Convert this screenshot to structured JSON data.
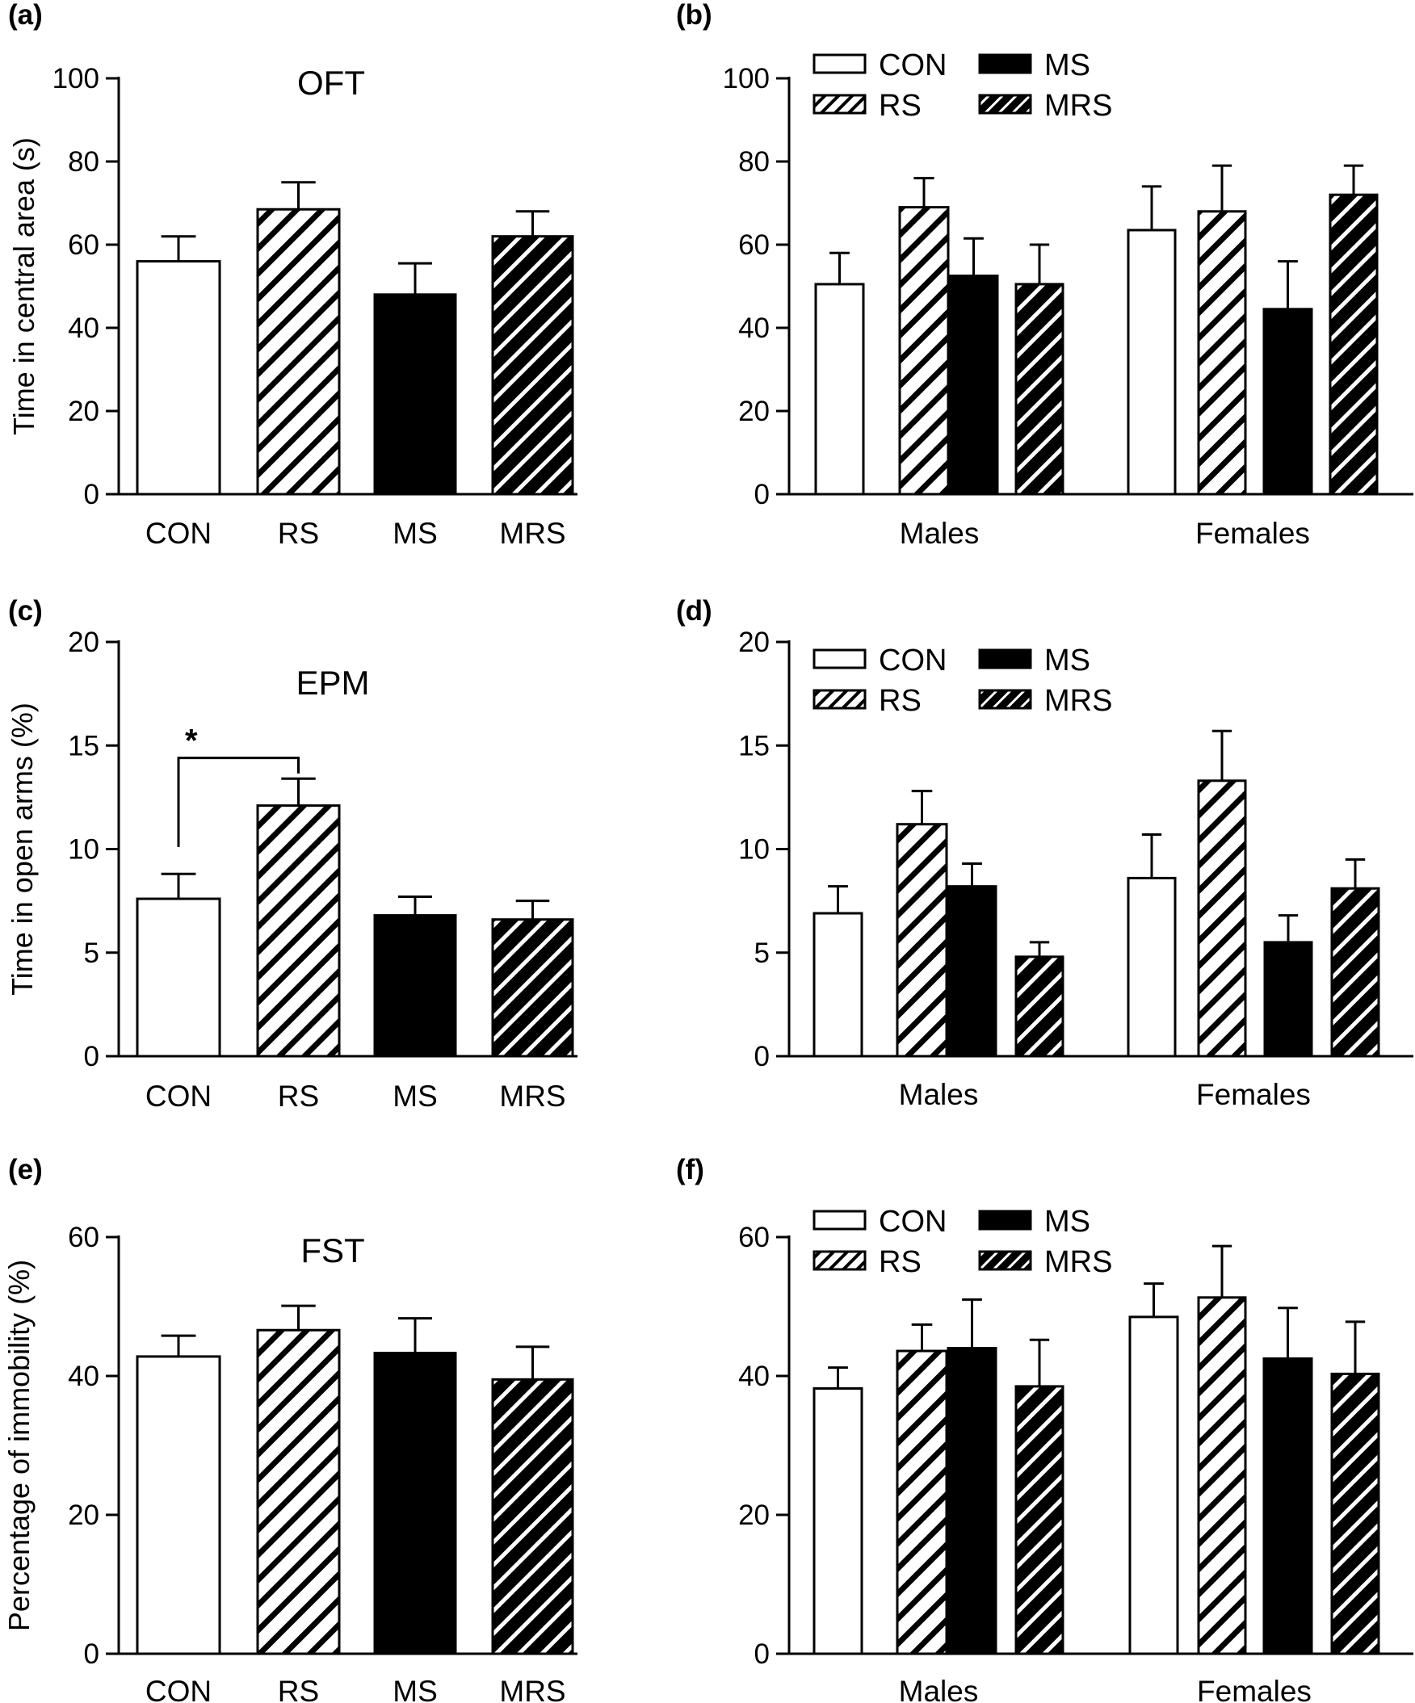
{
  "chart_data": [
    {
      "panel": "(a)",
      "type": "bar",
      "title": "OFT",
      "ylabel": "Time in central area (s)",
      "ylim": [
        0,
        100
      ],
      "yticks": [
        0,
        20,
        40,
        60,
        80,
        100
      ],
      "categories": [
        "CON",
        "RS",
        "MS",
        "MRS"
      ],
      "values": [
        56,
        68.5,
        48,
        62
      ],
      "errors": [
        6,
        6.5,
        7.5,
        6
      ],
      "fills": [
        "white",
        "hatch",
        "black",
        "hatch-dark"
      ],
      "grid": false
    },
    {
      "panel": "(b)",
      "type": "bar",
      "title": "",
      "ylabel": "",
      "ylim": [
        0,
        100
      ],
      "yticks": [
        0,
        20,
        40,
        60,
        80,
        100
      ],
      "groups": [
        "Males",
        "Females"
      ],
      "series": [
        {
          "name": "CON",
          "fill": "white",
          "values": [
            50.5,
            63.5
          ],
          "errors": [
            7.5,
            10.5
          ]
        },
        {
          "name": "RS",
          "fill": "hatch",
          "values": [
            69,
            68
          ],
          "errors": [
            7,
            11
          ]
        },
        {
          "name": "MS",
          "fill": "black",
          "values": [
            52.5,
            44.5
          ],
          "errors": [
            9,
            11.5
          ]
        },
        {
          "name": "MRS",
          "fill": "hatch-dark",
          "values": [
            50.5,
            72
          ],
          "errors": [
            9.5,
            7
          ]
        }
      ],
      "legend": "top-left",
      "grid": false
    },
    {
      "panel": "(c)",
      "type": "bar",
      "title": "EPM",
      "ylabel": "Time in open arms (%)",
      "ylim": [
        0,
        20
      ],
      "yticks": [
        0,
        5,
        10,
        15,
        20
      ],
      "categories": [
        "CON",
        "RS",
        "MS",
        "MRS"
      ],
      "values": [
        7.6,
        12.1,
        6.8,
        6.6
      ],
      "errors": [
        1.2,
        1.3,
        0.9,
        0.9
      ],
      "fills": [
        "white",
        "hatch",
        "black",
        "hatch-dark"
      ],
      "annotations": [
        {
          "text": "*",
          "from": "CON",
          "to": "RS"
        }
      ],
      "grid": false
    },
    {
      "panel": "(d)",
      "type": "bar",
      "title": "",
      "ylabel": "",
      "ylim": [
        0,
        20
      ],
      "yticks": [
        0,
        5,
        10,
        15,
        20
      ],
      "groups": [
        "Males",
        "Females"
      ],
      "series": [
        {
          "name": "CON",
          "fill": "white",
          "values": [
            6.9,
            8.6
          ],
          "errors": [
            1.3,
            2.1
          ]
        },
        {
          "name": "RS",
          "fill": "hatch",
          "values": [
            11.2,
            13.3
          ],
          "errors": [
            1.6,
            2.4
          ]
        },
        {
          "name": "MS",
          "fill": "black",
          "values": [
            8.2,
            5.5
          ],
          "errors": [
            1.1,
            1.3
          ]
        },
        {
          "name": "MRS",
          "fill": "hatch-dark",
          "values": [
            4.8,
            8.1
          ],
          "errors": [
            0.7,
            1.4
          ]
        }
      ],
      "legend": "top-left",
      "grid": false
    },
    {
      "panel": "(e)",
      "type": "bar",
      "title": "FST",
      "ylabel": "Percentage of immobility (%)",
      "ylim": [
        0,
        60
      ],
      "yticks": [
        0,
        20,
        40,
        60
      ],
      "categories": [
        "CON",
        "RS",
        "MS",
        "MRS"
      ],
      "values": [
        42.8,
        46.6,
        43.3,
        39.5
      ],
      "errors": [
        3,
        3.5,
        5,
        4.7
      ],
      "fills": [
        "white",
        "hatch",
        "black",
        "hatch-dark"
      ],
      "grid": false
    },
    {
      "panel": "(f)",
      "type": "bar",
      "title": "",
      "ylabel": "",
      "ylim": [
        0,
        60
      ],
      "yticks": [
        0,
        20,
        40,
        60
      ],
      "groups": [
        "Males",
        "Females"
      ],
      "series": [
        {
          "name": "CON",
          "fill": "white",
          "values": [
            38.2,
            48.5
          ],
          "errors": [
            3,
            4.8
          ]
        },
        {
          "name": "RS",
          "fill": "hatch",
          "values": [
            43.6,
            51.3
          ],
          "errors": [
            3.8,
            7.4
          ]
        },
        {
          "name": "MS",
          "fill": "black",
          "values": [
            44,
            42.5
          ],
          "errors": [
            7,
            7.3
          ]
        },
        {
          "name": "MRS",
          "fill": "hatch-dark",
          "values": [
            38.5,
            40.3
          ],
          "errors": [
            6.7,
            7.5
          ]
        }
      ],
      "legend": "top-left",
      "grid": false
    }
  ],
  "colors": {
    "axis": "#000000",
    "bar_black": "#000000",
    "bar_white": "#ffffff",
    "hatch_stroke": "#000000",
    "hatch_dark_stroke": "#ffffff"
  }
}
